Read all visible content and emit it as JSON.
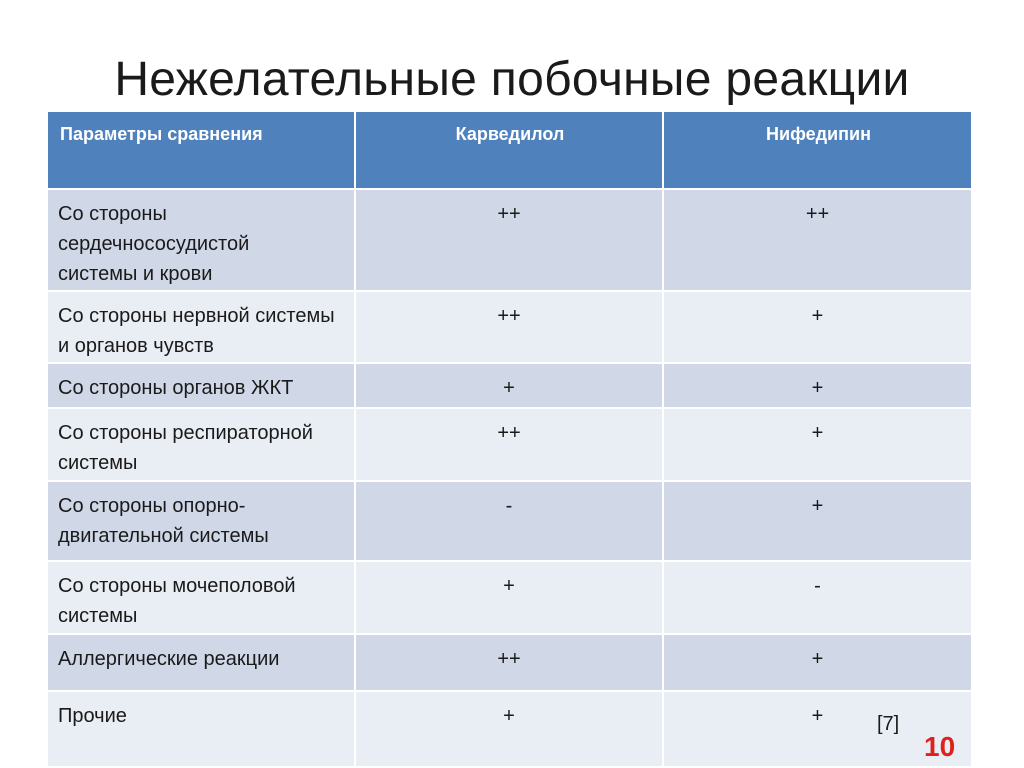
{
  "slide": {
    "title": "Нежелательные побочные реакции",
    "reference": "[7]",
    "page_number": "10",
    "colors": {
      "header_bg": "#4f81bd",
      "row_dark": "#d0d8e8",
      "row_light": "#e9edf4",
      "page_number": "#e0211b"
    }
  },
  "table": {
    "headers": [
      "Параметры сравнения",
      "Карведилол",
      "Нифедипин"
    ],
    "rows": [
      {
        "param": "Со стороны сердечнососудистой системы и крови",
        "carvedilol": "++",
        "nifedipine": "++"
      },
      {
        "param": "Со стороны нервной системы и органов чувств",
        "carvedilol": "++",
        "nifedipine": "+"
      },
      {
        "param": "Со стороны органов ЖКТ",
        "carvedilol": "+",
        "nifedipine": "+"
      },
      {
        "param": "Со стороны респираторной системы",
        "carvedilol": "++",
        "nifedipine": "+"
      },
      {
        "param": "Со стороны опорно-двигательной системы",
        "carvedilol": "-",
        "nifedipine": "+"
      },
      {
        "param": "Со стороны мочеполовой системы",
        "carvedilol": "+",
        "nifedipine": "-"
      },
      {
        "param": "Аллергические реакции",
        "carvedilol": "++",
        "nifedipine": "+"
      },
      {
        "param": "Прочие",
        "carvedilol": "+",
        "nifedipine": "+"
      }
    ]
  }
}
